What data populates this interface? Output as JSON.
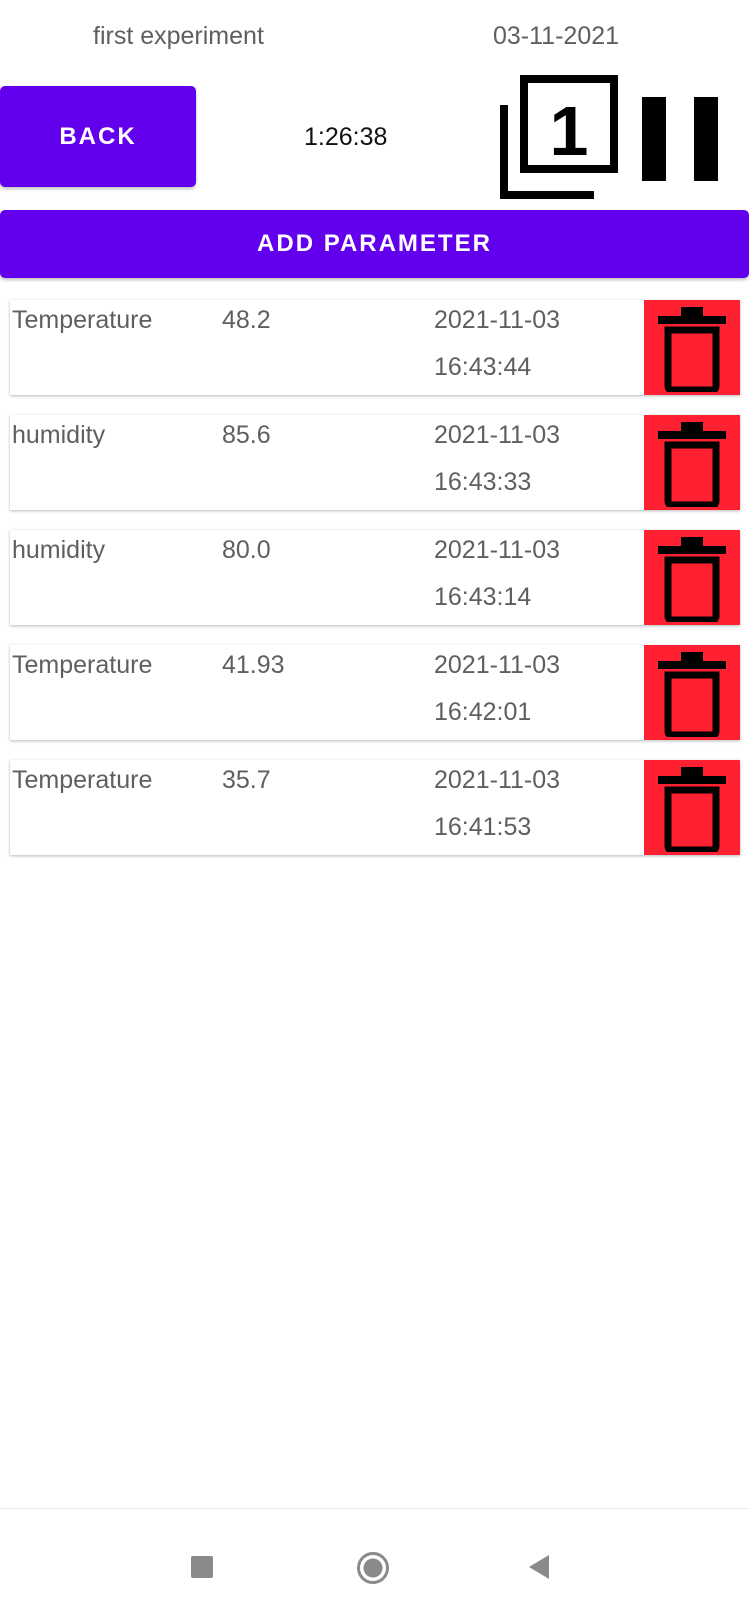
{
  "header": {
    "experiment_name": "first experiment",
    "date": "03-11-2021",
    "timer": "1:26:38"
  },
  "buttons": {
    "back_label": "BACK",
    "add_parameter_label": "ADD PARAMETER"
  },
  "icons": {
    "counter_icon": "filter-1-icon",
    "pause_icon": "pause-icon",
    "delete_icon": "trash-icon",
    "nav_recents": "square-icon",
    "nav_home": "circle-icon",
    "nav_back": "triangle-back-icon",
    "counter_digit": "1"
  },
  "colors": {
    "accent": "#6200ee",
    "delete": "#ff2131",
    "text_secondary": "#5f5f5f"
  },
  "records": [
    {
      "name": "Temperature",
      "value": "48.2",
      "date": "2021-11-03",
      "time": "16:43:44"
    },
    {
      "name": "humidity",
      "value": "85.6",
      "date": "2021-11-03",
      "time": "16:43:33"
    },
    {
      "name": "humidity",
      "value": "80.0",
      "date": "2021-11-03",
      "time": "16:43:14"
    },
    {
      "name": "Temperature",
      "value": "41.93",
      "date": "2021-11-03",
      "time": "16:42:01"
    },
    {
      "name": "Temperature",
      "value": "35.7",
      "date": "2021-11-03",
      "time": "16:41:53"
    }
  ]
}
